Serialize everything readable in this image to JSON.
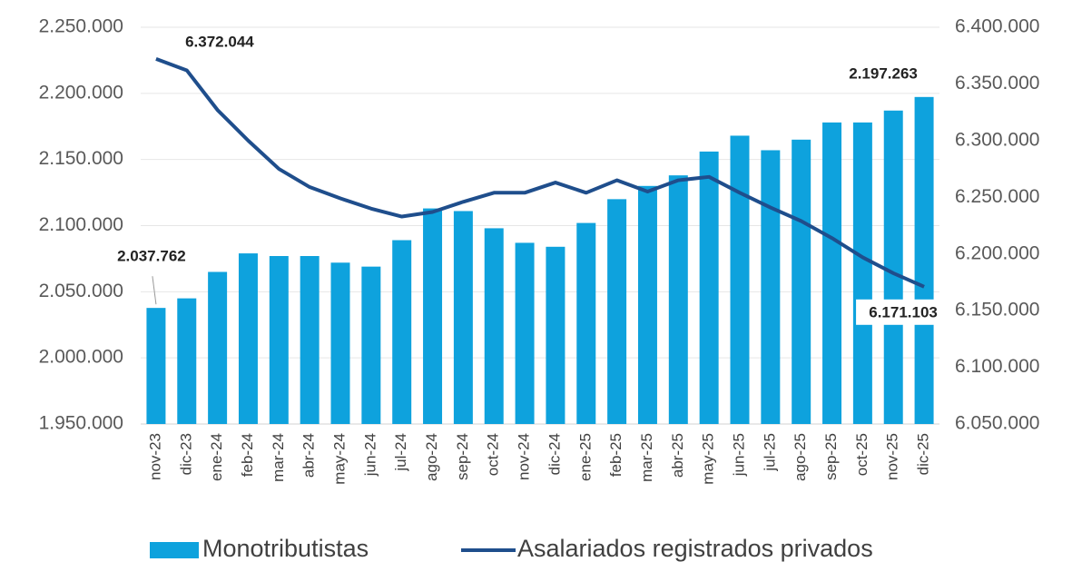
{
  "chart_data": {
    "type": "bar+line",
    "categories": [
      "nov-23",
      "dic-23",
      "ene-24",
      "feb-24",
      "mar-24",
      "abr-24",
      "may-24",
      "jun-24",
      "jul-24",
      "ago-24",
      "sep-24",
      "oct-24",
      "nov-24",
      "dic-24",
      "ene-25",
      "feb-25",
      "mar-25",
      "abr-25",
      "may-25",
      "jun-25",
      "jul-25",
      "ago-25",
      "sep-25",
      "oct-25",
      "nov-25",
      "dic-25"
    ],
    "series": [
      {
        "name": "Monotributistas",
        "type": "bar",
        "axis": "y",
        "color": "#0ea2dd",
        "values": [
          2037762,
          2045000,
          2065000,
          2079000,
          2077000,
          2077000,
          2072000,
          2069000,
          2089000,
          2113000,
          2111000,
          2098000,
          2087000,
          2084000,
          2102000,
          2120000,
          2130000,
          2138000,
          2156000,
          2168000,
          2157000,
          2165000,
          2178000,
          2178000,
          2187000,
          2197263
        ],
        "value_labels": [
          "2.037.762",
          null,
          null,
          null,
          null,
          null,
          null,
          null,
          null,
          null,
          null,
          null,
          null,
          null,
          null,
          null,
          null,
          null,
          null,
          null,
          null,
          null,
          null,
          null,
          null,
          "2.197.263"
        ]
      },
      {
        "name": "Asalariados registrados privados",
        "type": "line",
        "axis": "y2",
        "color": "#1f4e8c",
        "values": [
          6372044,
          6362000,
          6327000,
          6300000,
          6275000,
          6259000,
          6249000,
          6240000,
          6233000,
          6237000,
          6246000,
          6254000,
          6254000,
          6263000,
          6254000,
          6265000,
          6255000,
          6265000,
          6268000,
          6254000,
          6241000,
          6229000,
          6214000,
          6197000,
          6183000,
          6171103
        ],
        "value_labels": [
          "6.372.044",
          null,
          null,
          null,
          null,
          null,
          null,
          null,
          null,
          null,
          null,
          null,
          null,
          null,
          null,
          null,
          null,
          null,
          null,
          null,
          null,
          null,
          null,
          null,
          null,
          "6.171.103"
        ]
      }
    ],
    "ylim": [
      1950000,
      2250000
    ],
    "yticks": [
      {
        "value": 1950000,
        "label": "1.950.000"
      },
      {
        "value": 2000000,
        "label": "2.000.000"
      },
      {
        "value": 2050000,
        "label": "2.050.000"
      },
      {
        "value": 2100000,
        "label": "2.100.000"
      },
      {
        "value": 2150000,
        "label": "2.150.000"
      },
      {
        "value": 2200000,
        "label": "2.200.000"
      },
      {
        "value": 2250000,
        "label": "2.250.000"
      }
    ],
    "y2lim": [
      6050000,
      6400000
    ],
    "y2ticks": [
      {
        "value": 6050000,
        "label": "6.050.000"
      },
      {
        "value": 6100000,
        "label": "6.100.000"
      },
      {
        "value": 6150000,
        "label": "6.150.000"
      },
      {
        "value": 6200000,
        "label": "6.200.000"
      },
      {
        "value": 6250000,
        "label": "6.250.000"
      },
      {
        "value": 6300000,
        "label": "6.300.000"
      },
      {
        "value": 6350000,
        "label": "6.350.000"
      },
      {
        "value": 6400000,
        "label": "6.400.000"
      }
    ],
    "grid": true,
    "legend": "bottom"
  }
}
